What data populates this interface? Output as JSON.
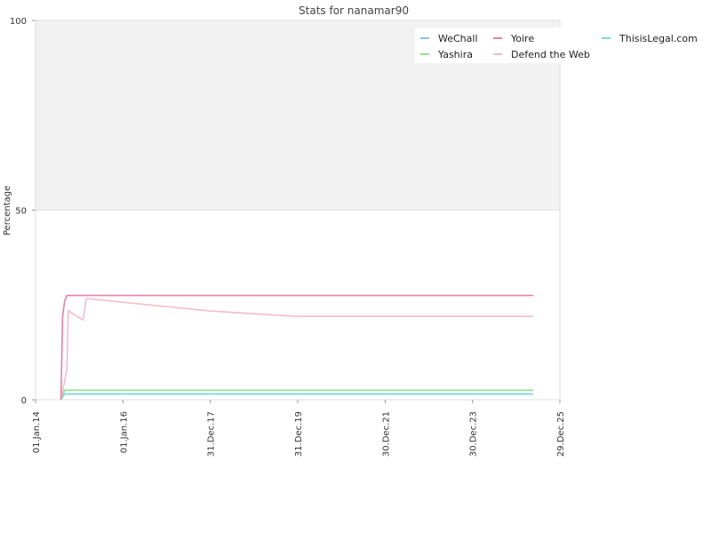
{
  "chart_data": {
    "type": "line",
    "title": "Stats for nanamar90",
    "ylabel": "Percentage",
    "xlabel": "",
    "xlim": [
      "2014-01-01",
      "2025-12-29"
    ],
    "ylim": [
      0,
      100
    ],
    "y_ticks": [
      0,
      50,
      100
    ],
    "x_ticks": [
      "01.Jan.14",
      "01.Jan.16",
      "31.Dec.17",
      "31.Dec.19",
      "30.Dec.21",
      "30.Dec.23",
      "29.Dec.25"
    ],
    "x_tick_dates": [
      "2014-01-01",
      "2016-01-01",
      "2017-12-31",
      "2019-12-31",
      "2021-12-30",
      "2023-12-30",
      "2025-12-29"
    ],
    "shaded_band": {
      "y_from": 50,
      "y_to": 100,
      "color": "#f2f2f2"
    },
    "legend_position": "top-right",
    "series": [
      {
        "name": "WeChall",
        "color": "#8fc0e8",
        "points": [
          [
            "2014-08-01",
            0
          ],
          [
            "2014-08-15",
            1.5
          ],
          [
            "2025-05-20",
            1.5
          ]
        ]
      },
      {
        "name": "Yoire",
        "color": "#e67fa9",
        "points": [
          [
            "2014-08-01",
            0
          ],
          [
            "2014-08-15",
            22
          ],
          [
            "2014-09-01",
            26
          ],
          [
            "2014-09-20",
            27.5
          ],
          [
            "2025-05-20",
            27.5
          ]
        ]
      },
      {
        "name": "ThisisLegal.com",
        "color": "#7fd8d8",
        "points": [
          [
            "2014-08-01",
            0
          ],
          [
            "2014-09-01",
            1.5
          ],
          [
            "2025-05-20",
            1.5
          ]
        ]
      },
      {
        "name": "Yashira",
        "color": "#8fe08f",
        "points": [
          [
            "2014-08-01",
            0
          ],
          [
            "2014-09-01",
            2.5
          ],
          [
            "2025-05-20",
            2.5
          ]
        ]
      },
      {
        "name": "Defend the Web",
        "color": "#f4bcc8",
        "points": [
          [
            "2014-08-01",
            0
          ],
          [
            "2014-09-01",
            5
          ],
          [
            "2014-09-20",
            8
          ],
          [
            "2014-10-01",
            23.5
          ],
          [
            "2015-02-01",
            21
          ],
          [
            "2015-03-01",
            26.7
          ],
          [
            "2016-01-01",
            25.7
          ],
          [
            "2018-01-01",
            23.4
          ],
          [
            "2019-12-01",
            22
          ],
          [
            "2025-05-20",
            22
          ]
        ]
      }
    ]
  }
}
